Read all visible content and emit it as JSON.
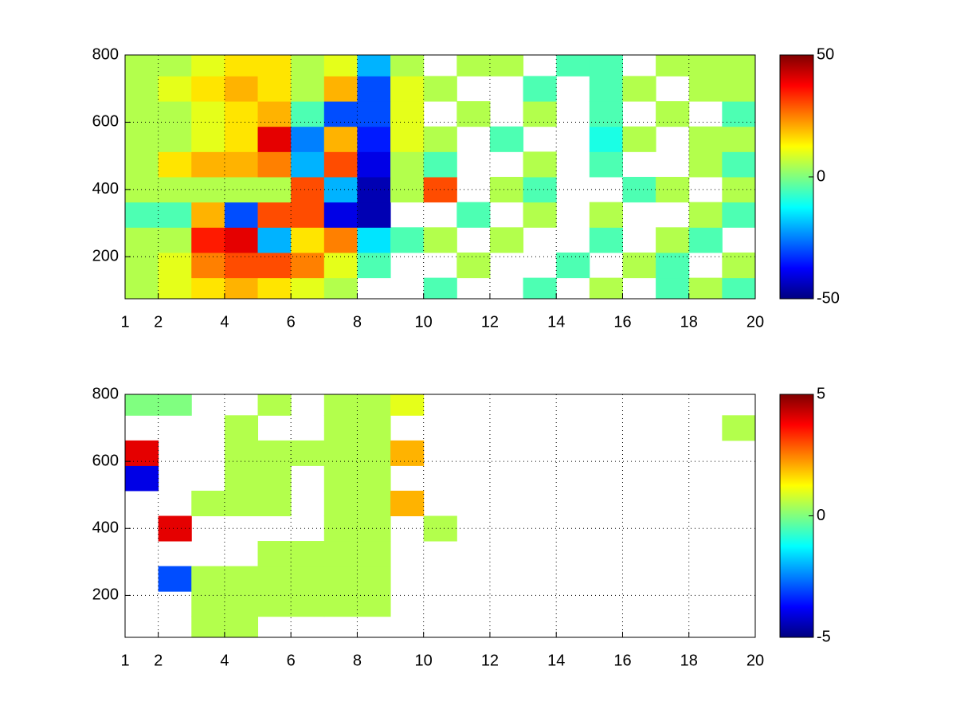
{
  "chart_data": [
    {
      "type": "heatmap",
      "colormap": "jet",
      "grid": true,
      "x": [
        1.5,
        2.5,
        3.5,
        4.5,
        5.5,
        6.5,
        7.5,
        8.5,
        9.5,
        10.5,
        11.5,
        12.5,
        13.5,
        14.5,
        15.5,
        16.5,
        17.5,
        18.5,
        19.5
      ],
      "y": [
        100,
        175,
        250,
        325,
        400,
        475,
        550,
        625,
        700,
        775
      ],
      "z": [
        [
          5,
          10,
          15,
          20,
          15,
          10,
          5,
          null,
          null,
          -5,
          null,
          null,
          -5,
          null,
          5,
          null,
          -5,
          5,
          -5
        ],
        [
          5,
          10,
          25,
          30,
          30,
          25,
          10,
          -5,
          null,
          null,
          5,
          null,
          null,
          -5,
          null,
          5,
          -5,
          null,
          5
        ],
        [
          5,
          5,
          35,
          40,
          -20,
          15,
          25,
          -15,
          -5,
          5,
          null,
          5,
          null,
          null,
          -5,
          null,
          5,
          -5,
          null
        ],
        [
          -5,
          -5,
          20,
          -30,
          30,
          30,
          -40,
          -45,
          null,
          null,
          -5,
          null,
          5,
          null,
          5,
          null,
          null,
          5,
          -5
        ],
        [
          5,
          5,
          5,
          5,
          5,
          30,
          -20,
          -45,
          5,
          30,
          null,
          5,
          -5,
          null,
          null,
          -5,
          5,
          null,
          5
        ],
        [
          5,
          15,
          20,
          20,
          25,
          -20,
          30,
          -40,
          5,
          -5,
          null,
          null,
          5,
          null,
          -5,
          null,
          null,
          5,
          -5
        ],
        [
          5,
          5,
          10,
          15,
          40,
          -25,
          20,
          -35,
          10,
          5,
          null,
          -5,
          null,
          null,
          -10,
          5,
          null,
          5,
          5
        ],
        [
          5,
          5,
          10,
          15,
          20,
          -5,
          -30,
          -30,
          10,
          null,
          5,
          null,
          5,
          null,
          -5,
          null,
          5,
          null,
          -5
        ],
        [
          5,
          10,
          15,
          20,
          15,
          5,
          20,
          -30,
          10,
          5,
          null,
          null,
          -5,
          null,
          -5,
          5,
          null,
          5,
          5
        ],
        [
          5,
          5,
          10,
          15,
          15,
          5,
          10,
          -20,
          5,
          null,
          5,
          5,
          null,
          -5,
          -5,
          null,
          5,
          5,
          5
        ]
      ],
      "xlim": [
        1,
        20
      ],
      "xticks": [
        1,
        2,
        4,
        6,
        8,
        10,
        12,
        14,
        16,
        18,
        20
      ],
      "ylim": [
        75,
        800
      ],
      "yticks": [
        200,
        400,
        600,
        800
      ],
      "clim": [
        -50,
        50
      ],
      "cticks": [
        -50,
        0,
        50
      ]
    },
    {
      "type": "heatmap",
      "colormap": "jet",
      "grid": true,
      "x": [
        1.5,
        2.5,
        3.5,
        4.5,
        5.5,
        6.5,
        7.5,
        8.5,
        9.5,
        10.5,
        11.5,
        12.5,
        13.5,
        14.5,
        15.5,
        16.5,
        17.5,
        18.5,
        19.5
      ],
      "y": [
        100,
        175,
        250,
        325,
        400,
        475,
        550,
        625,
        700,
        775
      ],
      "z": [
        [
          null,
          null,
          0.5,
          0.5,
          null,
          null,
          null,
          null,
          null,
          null,
          null,
          null,
          null,
          null,
          null,
          null,
          null,
          null,
          null
        ],
        [
          null,
          null,
          0.5,
          0.5,
          0.5,
          0.5,
          0.5,
          0.5,
          null,
          null,
          null,
          null,
          null,
          null,
          null,
          null,
          null,
          null,
          null
        ],
        [
          null,
          -3,
          0.5,
          0.5,
          0.5,
          0.5,
          0.5,
          0.5,
          null,
          null,
          null,
          null,
          null,
          null,
          null,
          null,
          null,
          null,
          null
        ],
        [
          null,
          null,
          null,
          null,
          0.5,
          0.5,
          0.5,
          0.5,
          null,
          null,
          null,
          null,
          null,
          null,
          null,
          null,
          null,
          null,
          null
        ],
        [
          null,
          4,
          null,
          null,
          null,
          null,
          0.5,
          0.5,
          null,
          0.5,
          null,
          null,
          null,
          null,
          null,
          null,
          null,
          null,
          null
        ],
        [
          null,
          null,
          0.5,
          0.5,
          0.5,
          null,
          0.5,
          0.5,
          2,
          null,
          null,
          null,
          null,
          null,
          null,
          null,
          null,
          null,
          null
        ],
        [
          -4,
          null,
          null,
          0.5,
          0.5,
          null,
          0.5,
          0.5,
          null,
          null,
          null,
          null,
          null,
          null,
          null,
          null,
          null,
          null,
          null
        ],
        [
          4,
          null,
          null,
          0.5,
          0.5,
          0.5,
          0.5,
          0.5,
          2,
          null,
          null,
          null,
          null,
          null,
          null,
          null,
          null,
          null,
          null
        ],
        [
          null,
          null,
          null,
          0.5,
          null,
          null,
          0.5,
          0.5,
          null,
          null,
          null,
          null,
          null,
          null,
          null,
          null,
          null,
          null,
          0.5
        ],
        [
          0,
          0,
          null,
          null,
          0.5,
          null,
          0.5,
          0.5,
          1,
          null,
          null,
          null,
          null,
          null,
          null,
          null,
          null,
          null,
          null
        ]
      ],
      "xlim": [
        1,
        20
      ],
      "xticks": [
        1,
        2,
        4,
        6,
        8,
        10,
        12,
        14,
        16,
        18,
        20
      ],
      "ylim": [
        75,
        800
      ],
      "yticks": [
        200,
        400,
        600,
        800
      ],
      "clim": [
        -5,
        5
      ],
      "cticks": [
        -5,
        0,
        5
      ]
    }
  ]
}
